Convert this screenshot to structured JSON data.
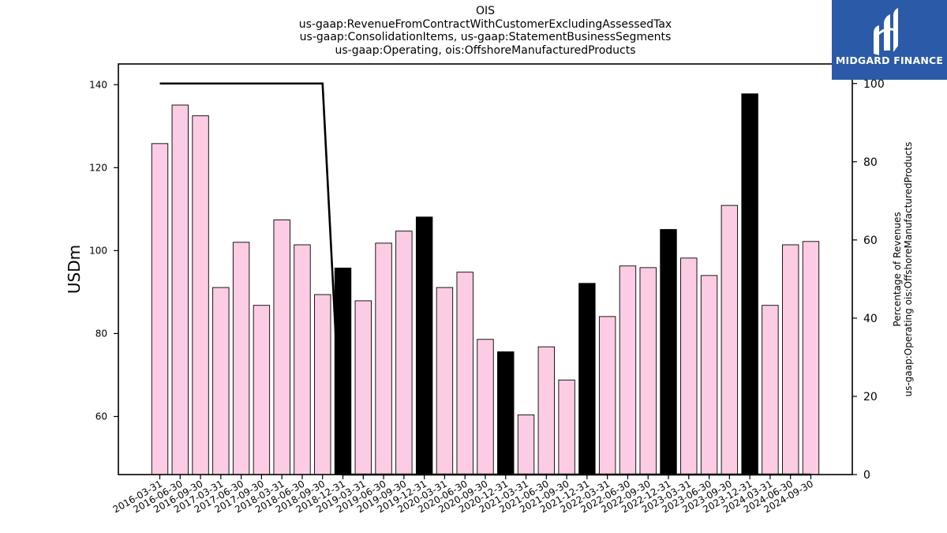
{
  "logo": {
    "text": "MIDGARD FINANCE",
    "color": "#2b5aa8"
  },
  "chart_data": {
    "type": "bar",
    "title_lines": [
      "OIS",
      "us-gaap:RevenueFromContractWithCustomerExcludingAssessedTax",
      "us-gaap:ConsolidationItems, us-gaap:StatementBusinessSegments",
      "us-gaap:Operating, ois:OffshoreManufacturedProducts"
    ],
    "ylabel": "USDm",
    "ylabel_right_lines": [
      "Percentage of Revenues",
      "us-gaap:Operating ois:OffshoreManufacturedProducts"
    ],
    "ylim": [
      46,
      145
    ],
    "yticks": [
      60,
      80,
      100,
      120,
      140
    ],
    "ylim_right": [
      0,
      105
    ],
    "yticks_right": [
      0,
      20,
      40,
      60,
      80,
      100
    ],
    "categories": [
      "2016-03-31",
      "2016-06-30",
      "2016-09-30",
      "2017-03-31",
      "2017-06-30",
      "2017-09-30",
      "2018-03-31",
      "2018-06-30",
      "2018-09-30",
      "2018-12-31",
      "2019-03-31",
      "2019-06-30",
      "2019-09-30",
      "2019-12-31",
      "2020-03-31",
      "2020-06-30",
      "2020-09-30",
      "2020-12-31",
      "2021-03-31",
      "2021-06-30",
      "2021-09-30",
      "2021-12-31",
      "2022-03-31",
      "2022-06-30",
      "2022-09-30",
      "2022-12-31",
      "2023-03-31",
      "2023-06-30",
      "2023-09-30",
      "2023-12-31",
      "2024-03-31",
      "2024-06-30",
      "2024-09-30"
    ],
    "series": [
      {
        "type": "bar",
        "values": [
          125.8,
          135.1,
          132.5,
          91.1,
          102.0,
          86.8,
          107.4,
          101.4,
          89.4,
          95.8,
          87.9,
          101.8,
          104.7,
          108.1,
          91.1,
          94.8,
          78.6,
          75.6,
          60.4,
          76.8,
          68.8,
          92.1,
          84.1,
          96.3,
          95.9,
          105.1,
          98.2,
          94.0,
          110.9,
          137.8,
          86.8,
          101.4,
          102.2
        ],
        "highlight": [
          false,
          false,
          false,
          false,
          false,
          false,
          false,
          false,
          false,
          true,
          false,
          false,
          false,
          true,
          false,
          false,
          false,
          true,
          false,
          false,
          false,
          true,
          false,
          false,
          false,
          true,
          false,
          false,
          false,
          true,
          false,
          false,
          false
        ],
        "color": "#fbcce4",
        "highlight_color": "#000000"
      },
      {
        "type": "line",
        "axis": "right",
        "values": [
          100,
          100,
          100,
          100,
          100,
          100,
          100,
          100,
          100,
          0,
          0,
          0,
          0,
          0,
          0,
          0,
          0,
          0,
          0,
          0,
          0,
          0,
          0,
          0,
          0,
          0,
          0,
          0,
          0,
          0,
          0,
          0,
          0
        ],
        "color": "#000000"
      }
    ]
  }
}
